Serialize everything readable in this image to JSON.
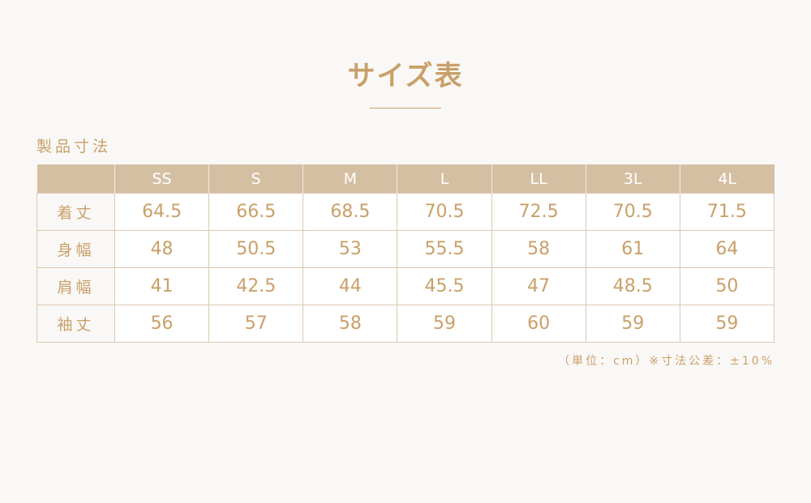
{
  "title": "サイズ表",
  "subtitle": "製品寸法",
  "table": {
    "headers": [
      "",
      "SS",
      "S",
      "M",
      "L",
      "LL",
      "3L",
      "4L"
    ],
    "rows": [
      {
        "label": "着丈",
        "values": [
          "64.5",
          "66.5",
          "68.5",
          "70.5",
          "72.5",
          "70.5",
          "71.5"
        ]
      },
      {
        "label": "身幅",
        "values": [
          "48",
          "50.5",
          "53",
          "55.5",
          "58",
          "61",
          "64"
        ]
      },
      {
        "label": "肩幅",
        "values": [
          "41",
          "42.5",
          "44",
          "45.5",
          "47",
          "48.5",
          "50"
        ]
      },
      {
        "label": "袖丈",
        "values": [
          "56",
          "57",
          "58",
          "59",
          "60",
          "59",
          "59"
        ]
      }
    ]
  },
  "note": "（単位：cm）※寸法公差：±10%"
}
